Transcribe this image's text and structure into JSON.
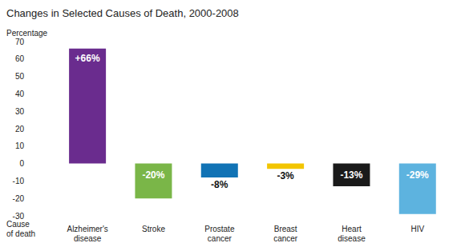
{
  "chart_data": {
    "type": "bar",
    "title": "Changes in Selected Causes of Death, 2000-2008",
    "y_label": "Percentage",
    "x_label": "Cause of death",
    "categories": [
      "Alzheimer's disease",
      "Stroke",
      "Prostate cancer",
      "Breast cancer",
      "Heart disease",
      "HIV"
    ],
    "values": [
      66,
      -20,
      -8,
      -3,
      -13,
      -29
    ],
    "value_labels": [
      "+66%",
      "-20%",
      "-8%",
      "-3%",
      "-13%",
      "-29%"
    ],
    "colors": [
      "#6a2c8e",
      "#7ab648",
      "#1173b5",
      "#f2c500",
      "#1a1a1a",
      "#5db3df"
    ],
    "ylim": [
      -30,
      70
    ],
    "yticks": [
      -30,
      -20,
      -10,
      0,
      10,
      20,
      30,
      40,
      50,
      60,
      70
    ],
    "grid": false,
    "data_labels": true
  }
}
